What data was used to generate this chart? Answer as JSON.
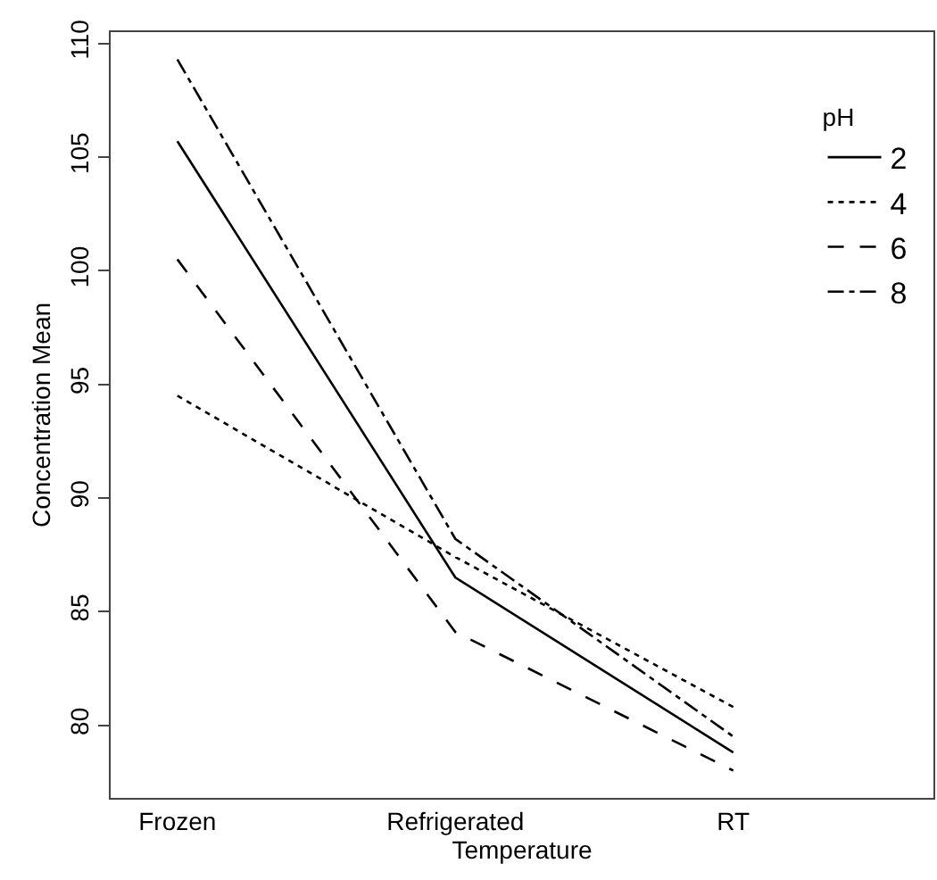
{
  "chart_data": {
    "type": "line",
    "xlabel": "Temperature",
    "ylabel": "Concentration Mean",
    "legend_title": "pH",
    "categories": [
      "Frozen",
      "Refrigerated",
      "RT"
    ],
    "series": [
      {
        "name": "2",
        "color": "#000000",
        "line_style": "solid",
        "values": [
          105.7,
          86.5,
          78.8
        ]
      },
      {
        "name": "4",
        "color": "#000000",
        "line_style": "dotted",
        "values": [
          94.5,
          87.4,
          80.8
        ]
      },
      {
        "name": "6",
        "color": "#000000",
        "line_style": "dashed",
        "values": [
          100.5,
          84.1,
          78.0
        ]
      },
      {
        "name": "8",
        "color": "#000000",
        "line_style": "dashdot",
        "values": [
          109.3,
          88.2,
          79.5
        ]
      }
    ],
    "ylim": [
      76.8,
      110.5
    ],
    "yticks": [
      80,
      85,
      90,
      95,
      100,
      105,
      110
    ],
    "grid": false,
    "legend": "top right",
    "marker": "none"
  }
}
